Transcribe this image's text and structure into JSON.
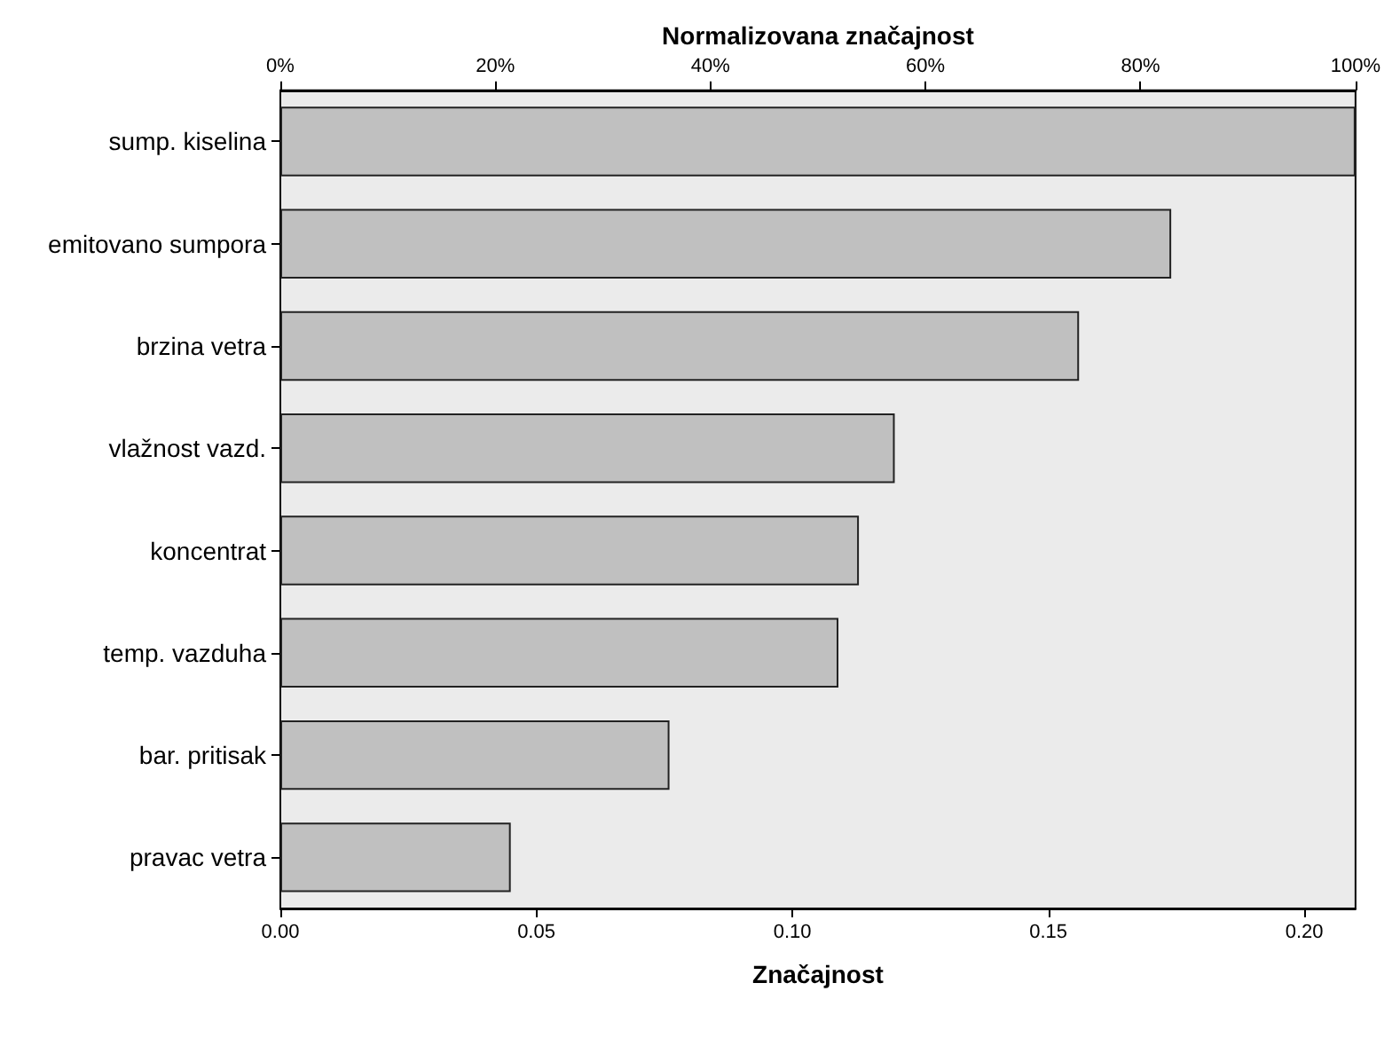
{
  "chart_data": {
    "type": "bar",
    "orientation": "horizontal",
    "x2label": "Normalizovana značajnost",
    "xlabel": "Značajnost",
    "categories": [
      "sump. kiselina",
      "emitovano sumpora",
      "brzina vetra",
      "vlažnost vazd.",
      "koncentrat",
      "temp. vazduha",
      "bar. pritisak",
      "pravac vetra"
    ],
    "values": [
      0.21,
      0.174,
      0.156,
      0.12,
      0.113,
      0.109,
      0.076,
      0.045
    ],
    "color": "#c0c0c0",
    "xlim": [
      0,
      0.21
    ],
    "xticks": [
      {
        "value": 0,
        "label": "0.00"
      },
      {
        "value": 0.05,
        "label": "0.05"
      },
      {
        "value": 0.1,
        "label": "0.10"
      },
      {
        "value": 0.15,
        "label": "0.15"
      },
      {
        "value": 0.2,
        "label": "0.20"
      }
    ],
    "x2lim": [
      0,
      100
    ],
    "x2ticks": [
      {
        "value": 0,
        "label": "0%"
      },
      {
        "value": 20,
        "label": "20%"
      },
      {
        "value": 40,
        "label": "40%"
      },
      {
        "value": 60,
        "label": "60%"
      },
      {
        "value": 80,
        "label": "80%"
      },
      {
        "value": 100,
        "label": "100%"
      }
    ],
    "grid": false
  }
}
